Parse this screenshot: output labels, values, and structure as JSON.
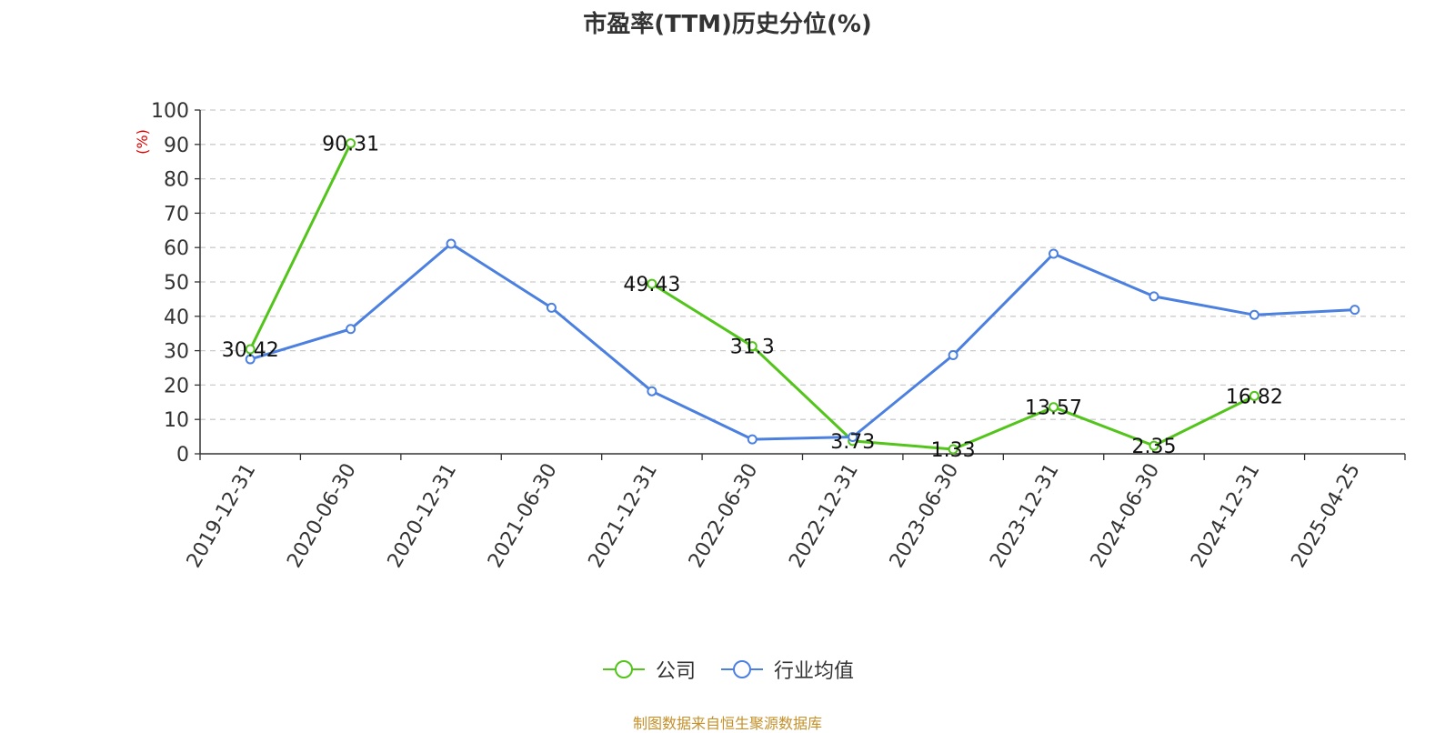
{
  "colors": {
    "company": "#52c41a",
    "industry": "#4c80e0",
    "axis_unit": "#e00000",
    "source": "#c4902a",
    "grid": "#cccccc",
    "text": "#333333"
  },
  "legend": {
    "company": "公司",
    "industry": "行业均值"
  },
  "source": "制图数据来自恒生聚源数据库",
  "chart_data": {
    "type": "line",
    "title": "市盈率(TTM)历史分位(%)",
    "ylabel": "(%)",
    "ylim": [
      0,
      100
    ],
    "yticks": [
      0,
      10,
      20,
      30,
      40,
      50,
      60,
      70,
      80,
      90,
      100
    ],
    "grid": true,
    "legend_position": "bottom-center",
    "categories": [
      "2019-12-31",
      "2020-06-30",
      "2020-12-31",
      "2021-06-30",
      "2021-12-31",
      "2022-06-30",
      "2022-12-31",
      "2023-06-30",
      "2023-12-31",
      "2024-06-30",
      "2024-12-31",
      "2025-04-25"
    ],
    "series": [
      {
        "name": "公司",
        "values": [
          30.42,
          90.31,
          null,
          null,
          49.43,
          31.3,
          3.73,
          1.33,
          13.57,
          2.35,
          16.82,
          null
        ],
        "labels": [
          "30.42",
          "90.31",
          "",
          "",
          "49.43",
          "31.3",
          "3.73",
          "1.33",
          "13.57",
          "2.35",
          "16.82",
          ""
        ]
      },
      {
        "name": "行业均值",
        "values": [
          27.5,
          36.3,
          61.1,
          42.5,
          18.2,
          4.2,
          4.9,
          28.7,
          58.2,
          45.8,
          40.4,
          41.9
        ],
        "labels": [
          "",
          "",
          "",
          "",
          "",
          "",
          "",
          "",
          "",
          "",
          "",
          ""
        ]
      }
    ]
  }
}
